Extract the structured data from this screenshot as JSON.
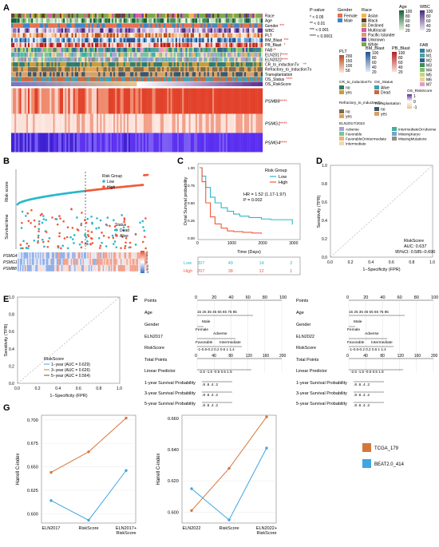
{
  "panels": {
    "A": {
      "label": "A",
      "rows": [
        "Race",
        "Age",
        "Gender",
        "WBC",
        "PLT",
        "BM_Blast",
        "PB_Blast",
        "FAB",
        "ELN2017",
        "ELN2022",
        "CR_to_inductionTx",
        "Refractory_to_inductionTx",
        "Transplantation",
        "OS_Status",
        "OS_RiskScore"
      ],
      "row_sig": [
        "",
        "",
        "***",
        "",
        "",
        "***",
        "*",
        "**",
        "****",
        "****",
        "**",
        "",
        "",
        "****",
        ""
      ],
      "genes": [
        "PSMB8",
        "PSMG1",
        "PSMG4"
      ],
      "gene_sig": [
        "****",
        "****",
        "****"
      ],
      "pvalue_legend": {
        "title": "P-value",
        "items": [
          "* < 0.05",
          "** < 0.01",
          "*** < 0.001",
          "**** < 0.0001"
        ]
      },
      "legend_gender": {
        "title": "Gender",
        "items": [
          "Female",
          "Male"
        ],
        "colors": [
          "#e6704b",
          "#3b86c6"
        ]
      },
      "legend_race": {
        "title": "Race",
        "items": [
          "Asian",
          "Black",
          "Declined",
          "Multiracial",
          "Pacific Islander",
          "Unknown",
          "White"
        ],
        "colors": [
          "#f0b64a",
          "#6b3e26",
          "#c3b45a",
          "#d75c9e",
          "#e88f7f",
          "#5f4aa3",
          "#7ba84c"
        ]
      },
      "legend_age": {
        "title": "Age",
        "ticks": [
          "100",
          "80",
          "60",
          "40",
          "20"
        ]
      },
      "legend_wbc": {
        "title": "WBC",
        "ticks": [
          "100",
          "80",
          "60",
          "40",
          "20"
        ]
      },
      "legend_fab": {
        "title": "FAB",
        "items": [
          "M0",
          "M1",
          "M2",
          "M3",
          "M4",
          "M5",
          "M6",
          "M7"
        ],
        "colors": [
          "#2d7f9d",
          "#4aa3a2",
          "#2f5e8a",
          "#3c8d5a",
          "#7cc36d",
          "#c6d57a",
          "#e4d59a",
          "#e89ac6"
        ]
      },
      "legend_plt": {
        "title": "PLT",
        "ticks": [
          "200",
          "150",
          "100",
          "50"
        ]
      },
      "legend_bm": {
        "title": "BM_Blast",
        "ticks": [
          "100",
          "80",
          "60",
          "40",
          "20"
        ]
      },
      "legend_pb": {
        "title": "PB_Blast",
        "ticks": [
          "100",
          "80",
          "60",
          "40",
          "20"
        ]
      },
      "legend_cr": {
        "title": "CR_to_inductionTx",
        "items": [
          "no",
          "yes"
        ]
      },
      "legend_os": {
        "title": "OS_Status",
        "items": [
          "Alive",
          "Dead"
        ]
      },
      "legend_osrisk": {
        "title": "OS_RiskScore",
        "ticks": [
          "1",
          "0",
          "-1"
        ]
      },
      "legend_refr": {
        "title": "Refractory_to_inductionTx",
        "items": [
          "no",
          "yes"
        ]
      },
      "legend_transp": {
        "title": "Transplantation",
        "items": [
          "no",
          "yes"
        ]
      },
      "legend_eln": {
        "title": "ELN2017/2022",
        "items": [
          "Adverse",
          "Favorable",
          "FavorableOrIntermediate",
          "Intermediate",
          "IntermediateOrAdverse",
          "MissingKaryo",
          "MissingMutations"
        ],
        "colors": [
          "#a7a4d0",
          "#77c4a0",
          "#e5b86a",
          "#efd9b5",
          "#3fb29a",
          "#75a4d2",
          "#8e8e8e"
        ]
      }
    },
    "B": {
      "label": "B",
      "ylabel_top": "Risk score",
      "ylabel_mid": "Survival time",
      "legend_group": {
        "title": "Risk Group",
        "items": [
          "Low",
          "High"
        ],
        "colors": [
          "#2ab7ca",
          "#f05a3a"
        ]
      },
      "legend_status": {
        "title": "Status",
        "items": [
          "Dead",
          "Alive"
        ],
        "colors": [
          "#2ab7ca",
          "#f05a3a"
        ]
      },
      "genes": [
        "PSMG4",
        "PSMG1",
        "PSMB8"
      ],
      "scale_ticks": [
        "3",
        "2",
        "1",
        "0",
        "-1",
        "-2",
        "-3"
      ]
    },
    "C": {
      "label": "C",
      "ylabel": "Ovral Survival probability",
      "xlabel": "Time (Days)",
      "xticks": [
        "0",
        "1000",
        "2000",
        "3000"
      ],
      "yticks": [
        "0.00",
        "0.25",
        "0.50",
        "0.75",
        "1.00"
      ],
      "legend_title": "Risk Group",
      "legend_items": [
        "Low",
        "High"
      ],
      "hr_text": "HR = 1.52 (1.17-1.97)",
      "p_text": "P = 0.002",
      "risk_rows": [
        {
          "label": "Low",
          "values": [
            "207",
            "49",
            "14",
            "2"
          ]
        },
        {
          "label": "High",
          "values": [
            "207",
            "38",
            "12",
            "1"
          ]
        }
      ]
    },
    "D": {
      "label": "D",
      "ylabel": "Sensitivity (TPR)",
      "xlabel": "1−Specificity (FPR)",
      "ticks": [
        "0.0",
        "0.2",
        "0.4",
        "0.6",
        "0.8",
        "1.0"
      ],
      "name": "RiskScore",
      "auc": "AUC: 0.637",
      "ci": "95%CI: 0.585−0.690"
    },
    "E": {
      "label": "E",
      "ylabel": "Sensitivity (TPR)",
      "xlabel": "1−Specificity (FPR)",
      "ticks": [
        "0.0",
        "0.2",
        "0.4",
        "0.6",
        "0.8",
        "1.0"
      ],
      "legend_title": "RiskScore",
      "legend_items": [
        "1−year (AUC = 0.629)",
        "3−year (AUC = 0.626)",
        "5−year (AUC = 0.564)"
      ]
    },
    "F": {
      "label": "F",
      "left": {
        "rows": [
          "Points",
          "Age",
          "Gender",
          "ELN2017",
          "RiskScore",
          "Total Points",
          "Linear Predictor",
          "1-year Survival Probability",
          "3-year Survival Probability",
          "5-year Survival Probability"
        ],
        "points_ticks": [
          "0",
          "20",
          "40",
          "60",
          "80",
          "100"
        ],
        "age_ticks": "15  25  35  45  55  65  75  85",
        "gender_labels": [
          "Male",
          "Female"
        ],
        "eln_labels": [
          "Adverse",
          "Favorable",
          "Intermediate"
        ],
        "risk_ticks": "-1-0.6-0.2 0.2 0.6 1 1.4",
        "total_ticks": [
          "0",
          "40",
          "80",
          "120",
          "160",
          "200"
        ],
        "lp_ticks": "-2.5  -1.5  -0.5  0.5  1.5",
        "surv1": ".8 .6 .4 .2",
        "surv3": ".8  .6 .4 .2",
        "surv5": ".8  .6  .4 .2"
      },
      "right": {
        "rows": [
          "Points",
          "Age",
          "Gender",
          "ELN2022",
          "RiskScore",
          "Total Points",
          "Linear Predictor",
          "1-year Survival Probability",
          "3-year Survival Probability",
          "5-year Survival Probability"
        ],
        "points_ticks": [
          "0",
          "20",
          "40",
          "60",
          "80",
          "100"
        ],
        "age_ticks": "15  25  35  45  55  65  75  85",
        "gender_labels": [
          "Male",
          "Female"
        ],
        "eln_labels": [
          "Adverse",
          "Favorable",
          "Intermediate"
        ],
        "risk_ticks": "-1-0.6-0.2 0.2 0.6 1 1.4",
        "total_ticks": [
          "0",
          "40",
          "80",
          "120",
          "160",
          "200"
        ],
        "lp_ticks": "-2.5  -1.5  -0.5  0.5  1.5",
        "surv1": ".8  .6 .4 .2",
        "surv3": ".8  .6 .4 .2",
        "surv5": ".8  .6  .4 .2"
      }
    },
    "G": {
      "label": "G",
      "legend_items": [
        "TCGA_179",
        "BEAT2.0_414"
      ],
      "colors": [
        "#d4773e",
        "#3ea6e2"
      ]
    }
  },
  "chart_data": [
    {
      "type": "line",
      "panel": "C",
      "title": "",
      "xlabel": "Time (Days)",
      "ylabel": "Ovral Survival probability",
      "xlim": [
        0,
        3200
      ],
      "ylim": [
        0,
        1
      ],
      "series": [
        {
          "name": "Low",
          "x": [
            0,
            80,
            200,
            350,
            500,
            700,
            900,
            1100,
            1300,
            1600,
            2000,
            2300,
            2600,
            3000
          ],
          "y": [
            1.0,
            0.88,
            0.72,
            0.58,
            0.5,
            0.43,
            0.38,
            0.34,
            0.31,
            0.29,
            0.27,
            0.26,
            0.26,
            0.19
          ]
        },
        {
          "name": "High",
          "x": [
            0,
            80,
            200,
            350,
            500,
            700,
            900,
            1100,
            1400,
            1700,
            2000
          ],
          "y": [
            1.0,
            0.8,
            0.5,
            0.3,
            0.2,
            0.14,
            0.1,
            0.09,
            0.08,
            0.07,
            0.06
          ]
        }
      ]
    },
    {
      "type": "line",
      "panel": "D",
      "title": "",
      "xlabel": "1−Specificity (FPR)",
      "ylabel": "Sensitivity (TPR)",
      "xlim": [
        0,
        1
      ],
      "ylim": [
        0,
        1
      ],
      "series": [
        {
          "name": "RiskScore",
          "x": [
            0,
            0.05,
            0.1,
            0.15,
            0.2,
            0.3,
            0.4,
            0.5,
            0.6,
            0.7,
            0.8,
            0.9,
            1.0
          ],
          "y": [
            0,
            0.1,
            0.2,
            0.28,
            0.36,
            0.46,
            0.58,
            0.66,
            0.78,
            0.85,
            0.9,
            0.96,
            1.0
          ]
        }
      ]
    },
    {
      "type": "line",
      "panel": "E",
      "title": "",
      "xlabel": "1−Specificity (FPR)",
      "ylabel": "Sensitivity (TPR)",
      "xlim": [
        0,
        1
      ],
      "ylim": [
        0,
        1
      ],
      "series": [
        {
          "name": "1−year",
          "x": [
            0,
            0.1,
            0.2,
            0.3,
            0.4,
            0.5,
            0.6,
            0.7,
            0.8,
            0.9,
            1.0
          ],
          "y": [
            0,
            0.15,
            0.28,
            0.38,
            0.5,
            0.6,
            0.72,
            0.8,
            0.88,
            0.95,
            1.0
          ]
        },
        {
          "name": "3−year",
          "x": [
            0,
            0.1,
            0.2,
            0.3,
            0.4,
            0.5,
            0.6,
            0.7,
            0.8,
            0.9,
            1.0
          ],
          "y": [
            0,
            0.12,
            0.25,
            0.36,
            0.48,
            0.62,
            0.7,
            0.82,
            0.9,
            0.96,
            1.0
          ]
        },
        {
          "name": "5−year",
          "x": [
            0,
            0.1,
            0.2,
            0.3,
            0.4,
            0.5,
            0.6,
            0.7,
            0.8,
            0.9,
            1.0
          ],
          "y": [
            0,
            0.1,
            0.2,
            0.3,
            0.42,
            0.52,
            0.64,
            0.74,
            0.84,
            0.93,
            1.0
          ]
        }
      ]
    },
    {
      "type": "line",
      "panel": "G-left",
      "title": "",
      "xlabel": "",
      "ylabel": "Harrell C-index",
      "categories": [
        "ELN2017",
        "RiskScore",
        "ELN2017+\nRiskScore"
      ],
      "ylim": [
        0.59,
        0.705
      ],
      "yticks": [
        "0.600",
        "0.625",
        "0.650",
        "0.675",
        "0.700"
      ],
      "series": [
        {
          "name": "TCGA_179",
          "values": [
            0.644,
            0.666,
            0.702
          ]
        },
        {
          "name": "BEAT2.0_414",
          "values": [
            0.614,
            0.593,
            0.646
          ]
        }
      ]
    },
    {
      "type": "line",
      "panel": "G-right",
      "title": "",
      "xlabel": "",
      "ylabel": "Harrell C-index",
      "categories": [
        "ELN2022",
        "RiskScore",
        "ELN2022+\nRiskScore"
      ],
      "ylim": [
        0.593,
        0.662
      ],
      "yticks": [
        "0.600",
        "0.620",
        "0.640",
        "0.660"
      ],
      "series": [
        {
          "name": "TCGA_179",
          "values": [
            0.601,
            0.628,
            0.661
          ]
        },
        {
          "name": "BEAT2.0_414",
          "values": [
            0.615,
            0.595,
            0.641
          ]
        }
      ]
    }
  ]
}
